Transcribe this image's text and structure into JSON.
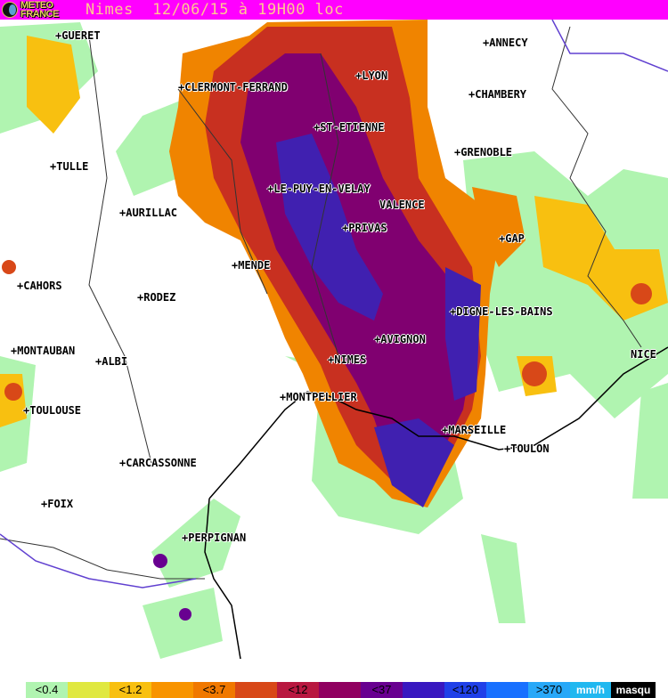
{
  "header": {
    "logo_line1": "METEO",
    "logo_line2": "FRANCE",
    "title": "Nimes  12/06/15 à 19H00 loc"
  },
  "cities": [
    {
      "name": "GUERET"
    },
    {
      "name": "ANNECY"
    },
    {
      "name": "LYON"
    },
    {
      "name": "CLERMONT-FERRAND"
    },
    {
      "name": "CHAMBERY"
    },
    {
      "name": "ST-ETIENNE"
    },
    {
      "name": "GRENOBLE"
    },
    {
      "name": "TULLE"
    },
    {
      "name": "LE-PUY-EN-VELAY"
    },
    {
      "name": "VALENCE"
    },
    {
      "name": "AURILLAC"
    },
    {
      "name": "PRIVAS"
    },
    {
      "name": "GAP"
    },
    {
      "name": "MENDE"
    },
    {
      "name": "CAHORS"
    },
    {
      "name": "RODEZ"
    },
    {
      "name": "DIGNE-LES-BAINS"
    },
    {
      "name": "AVIGNON"
    },
    {
      "name": "MONTAUBAN"
    },
    {
      "name": "ALBI"
    },
    {
      "name": "NICE"
    },
    {
      "name": "NIMES"
    },
    {
      "name": "MONTPELLIER"
    },
    {
      "name": "TOULOUSE"
    },
    {
      "name": "MARSEILLE"
    },
    {
      "name": "TOULON"
    },
    {
      "name": "CARCASSONNE"
    },
    {
      "name": "FOIX"
    },
    {
      "name": "PERPIGNAN"
    }
  ],
  "legend": {
    "cells": [
      {
        "label": "<0.4",
        "color": "#b0f4b0"
      },
      {
        "label": "",
        "color": "#e0e840"
      },
      {
        "label": "<1.2",
        "color": "#f8c010"
      },
      {
        "label": "",
        "color": "#f89400"
      },
      {
        "label": "<3.7",
        "color": "#f07800"
      },
      {
        "label": "",
        "color": "#d84818"
      },
      {
        "label": "<12",
        "color": "#b81840"
      },
      {
        "label": "",
        "color": "#900060"
      },
      {
        "label": "<37",
        "color": "#680090"
      },
      {
        "label": "",
        "color": "#3818c0"
      },
      {
        "label": "<120",
        "color": "#2040e8"
      },
      {
        "label": "",
        "color": "#1870ff"
      },
      {
        "label": ">370",
        "color": "#28a8f8"
      }
    ],
    "unit": "mm/h",
    "mask": "masqu"
  }
}
